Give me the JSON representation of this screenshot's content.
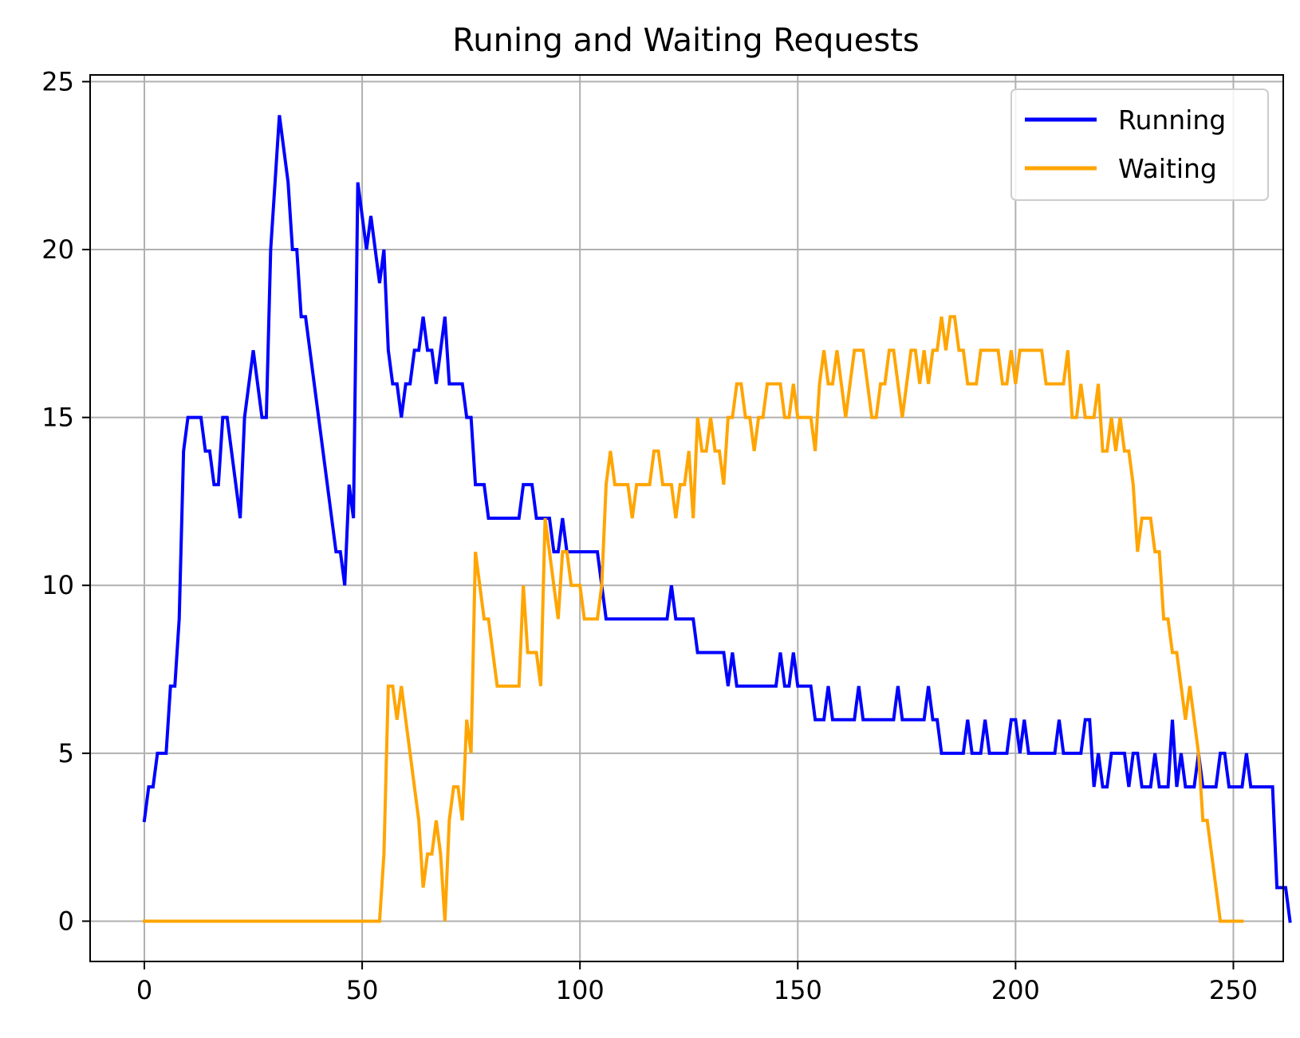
{
  "chart_data": {
    "type": "line",
    "title": "Runing and Waiting Requests",
    "xlabel": "",
    "ylabel": "",
    "xlim": [
      -12.45,
      261.45
    ],
    "ylim": [
      -1.2,
      25.2
    ],
    "x_ticks": [
      0,
      50,
      100,
      150,
      200,
      250
    ],
    "y_ticks": [
      0,
      5,
      10,
      15,
      20,
      25
    ],
    "grid": true,
    "legend_position": "top-right",
    "series": [
      {
        "name": "Running",
        "color": "#0000ff",
        "values": [
          3,
          4,
          4,
          5,
          5,
          5,
          7,
          7,
          9,
          14,
          15,
          15,
          15,
          15,
          14,
          14,
          13,
          13,
          15,
          15,
          14,
          13,
          12,
          15,
          16,
          17,
          16,
          15,
          15,
          20,
          22,
          24,
          23,
          22,
          20,
          20,
          18,
          18,
          17,
          16,
          15,
          14,
          13,
          12,
          11,
          11,
          10,
          13,
          12,
          22,
          21,
          20,
          21,
          20,
          19,
          20,
          17,
          16,
          16,
          15,
          16,
          16,
          17,
          17,
          18,
          17,
          17,
          16,
          17,
          18,
          16,
          16,
          16,
          16,
          15,
          15,
          13,
          13,
          13,
          12,
          12,
          12,
          12,
          12,
          12,
          12,
          12,
          13,
          13,
          13,
          12,
          12,
          12,
          12,
          11,
          11,
          12,
          11,
          11,
          11,
          11,
          11,
          11,
          11,
          11,
          10,
          9,
          9,
          9,
          9,
          9,
          9,
          9,
          9,
          9,
          9,
          9,
          9,
          9,
          9,
          9,
          10,
          9,
          9,
          9,
          9,
          9,
          8,
          8,
          8,
          8,
          8,
          8,
          8,
          7,
          8,
          7,
          7,
          7,
          7,
          7,
          7,
          7,
          7,
          7,
          7,
          8,
          7,
          7,
          8,
          7,
          7,
          7,
          7,
          6,
          6,
          6,
          7,
          6,
          6,
          6,
          6,
          6,
          6,
          7,
          6,
          6,
          6,
          6,
          6,
          6,
          6,
          6,
          7,
          6,
          6,
          6,
          6,
          6,
          6,
          7,
          6,
          6,
          5,
          5,
          5,
          5,
          5,
          5,
          6,
          5,
          5,
          5,
          6,
          5,
          5,
          5,
          5,
          5,
          6,
          6,
          5,
          6,
          5,
          5,
          5,
          5,
          5,
          5,
          5,
          6,
          5,
          5,
          5,
          5,
          5,
          6,
          6,
          4,
          5,
          4,
          4,
          5,
          5,
          5,
          5,
          4,
          5,
          5,
          4,
          4,
          4,
          5,
          4,
          4,
          4,
          6,
          4,
          5,
          4,
          4,
          4,
          5,
          4,
          4,
          4,
          4,
          5,
          5,
          4,
          4,
          4,
          4,
          5,
          4,
          4,
          4,
          4,
          4,
          4,
          1,
          1,
          1,
          0
        ]
      },
      {
        "name": "Waiting",
        "color": "#ffa500",
        "values": [
          0,
          0,
          0,
          0,
          0,
          0,
          0,
          0,
          0,
          0,
          0,
          0,
          0,
          0,
          0,
          0,
          0,
          0,
          0,
          0,
          0,
          0,
          0,
          0,
          0,
          0,
          0,
          0,
          0,
          0,
          0,
          0,
          0,
          0,
          0,
          0,
          0,
          0,
          0,
          0,
          0,
          0,
          0,
          0,
          0,
          0,
          0,
          0,
          0,
          0,
          0,
          0,
          0,
          0,
          0,
          2,
          7,
          7,
          6,
          7,
          6,
          5,
          4,
          3,
          1,
          2,
          2,
          3,
          2,
          0,
          3,
          4,
          4,
          3,
          6,
          5,
          11,
          10,
          9,
          9,
          8,
          7,
          7,
          7,
          7,
          7,
          7,
          10,
          8,
          8,
          8,
          7,
          12,
          11,
          10,
          9,
          11,
          11,
          10,
          10,
          10,
          9,
          9,
          9,
          9,
          10,
          13,
          14,
          13,
          13,
          13,
          13,
          12,
          13,
          13,
          13,
          13,
          14,
          14,
          13,
          13,
          13,
          12,
          13,
          13,
          14,
          12,
          15,
          14,
          14,
          15,
          14,
          14,
          13,
          15,
          15,
          16,
          16,
          15,
          15,
          14,
          15,
          15,
          16,
          16,
          16,
          16,
          15,
          15,
          16,
          15,
          15,
          15,
          15,
          14,
          16,
          17,
          16,
          16,
          17,
          16,
          15,
          16,
          17,
          17,
          17,
          16,
          15,
          15,
          16,
          16,
          17,
          17,
          16,
          15,
          16,
          17,
          17,
          16,
          17,
          16,
          17,
          17,
          18,
          17,
          18,
          18,
          17,
          17,
          16,
          16,
          16,
          17,
          17,
          17,
          17,
          17,
          16,
          16,
          17,
          16,
          17,
          17,
          17,
          17,
          17,
          17,
          16,
          16,
          16,
          16,
          16,
          17,
          15,
          15,
          16,
          15,
          15,
          15,
          16,
          14,
          14,
          15,
          14,
          15,
          14,
          14,
          13,
          11,
          12,
          12,
          12,
          11,
          11,
          9,
          9,
          8,
          8,
          7,
          6,
          7,
          6,
          5,
          3,
          3,
          2,
          1,
          0,
          0,
          0,
          0,
          0,
          0
        ]
      }
    ]
  }
}
